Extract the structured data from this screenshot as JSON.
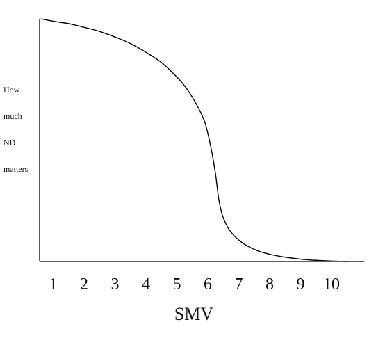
{
  "chart_data": {
    "type": "line",
    "title": "",
    "xlabel": "SMV",
    "ylabel_lines": [
      "How",
      "much",
      "ND",
      "matters"
    ],
    "x_tick_labels": [
      "1",
      "2",
      "3",
      "4",
      "5",
      "6",
      "7",
      "8",
      "9",
      "10"
    ],
    "xlim": [
      0.6,
      10.8
    ],
    "ylim": [
      0,
      1
    ],
    "grid": false,
    "series": [
      {
        "x": [
          0.6,
          1.0,
          1.5,
          2.0,
          2.5,
          3.0,
          3.5,
          4.0,
          4.5,
          5.0,
          5.3,
          5.6,
          5.9,
          6.1,
          6.25,
          6.35,
          6.45,
          6.55,
          6.7,
          6.9,
          7.2,
          7.6,
          8.0,
          8.5,
          9.0,
          9.5,
          10.0,
          10.5
        ],
        "y": [
          1.0,
          0.99,
          0.98,
          0.965,
          0.948,
          0.925,
          0.898,
          0.862,
          0.82,
          0.76,
          0.715,
          0.655,
          0.575,
          0.47,
          0.36,
          0.26,
          0.2,
          0.165,
          0.13,
          0.1,
          0.07,
          0.045,
          0.03,
          0.018,
          0.01,
          0.005,
          0.002,
          0.0
        ]
      }
    ]
  }
}
